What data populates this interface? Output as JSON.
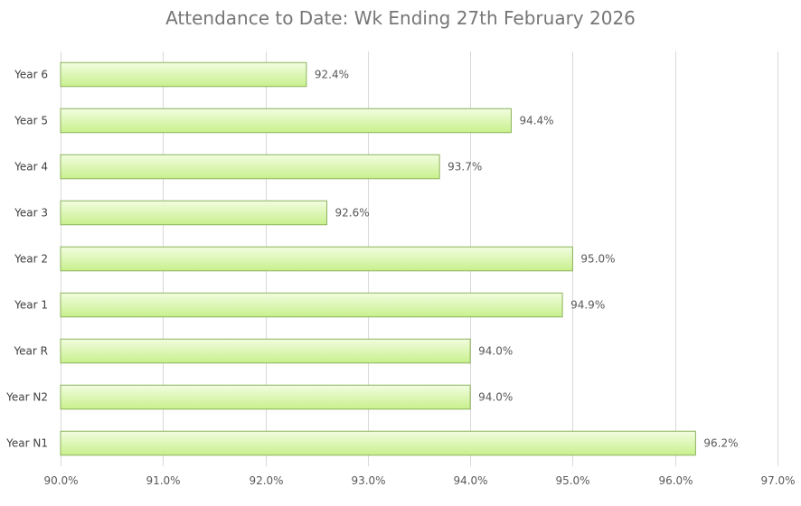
{
  "chart_data": {
    "type": "bar",
    "orientation": "horizontal",
    "title": "Attendance to Date: Wk Ending 27th February 2026",
    "categories": [
      "Year 6",
      "Year 5",
      "Year 4",
      "Year 3",
      "Year 2",
      "Year 1",
      "Year R",
      "Year N2",
      "Year N1"
    ],
    "values": [
      92.4,
      94.4,
      93.7,
      92.6,
      95.0,
      94.9,
      94.0,
      94.0,
      96.2
    ],
    "value_labels": [
      "92.4%",
      "94.4%",
      "93.7%",
      "92.6%",
      "95.0%",
      "94.9%",
      "94.0%",
      "94.0%",
      "96.2%"
    ],
    "xlim": [
      90.0,
      97.0
    ],
    "x_ticks": [
      90.0,
      91.0,
      92.0,
      93.0,
      94.0,
      95.0,
      96.0,
      97.0
    ],
    "x_tick_labels": [
      "90.0%",
      "91.0%",
      "92.0%",
      "93.0%",
      "94.0%",
      "95.0%",
      "96.0%",
      "97.0%"
    ],
    "xlabel": "",
    "ylabel": "",
    "grid": "vertical",
    "legend": "none",
    "colors": {
      "bar_top": "#f2fde0",
      "bar_bottom": "#c8f08c",
      "bar_edge": "#8cb35c",
      "grid": "#d9d9d9"
    }
  }
}
